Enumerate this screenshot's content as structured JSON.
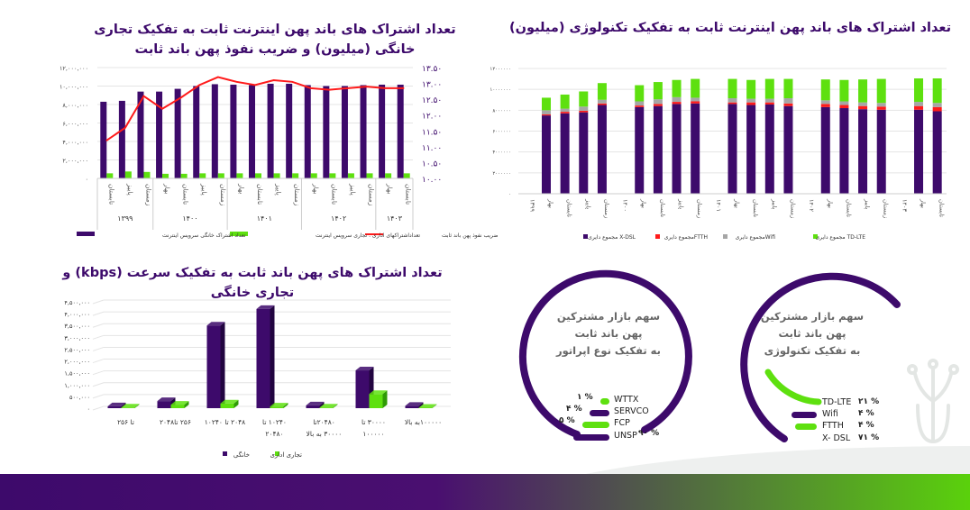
{
  "charts_text": {
    "c1_title_1": "تعداد اشتراک های باند پهن اینترنت ثابت به تفکیک تجاری",
    "c1_title_2": "خانگی (میلیون) و ضریب نفوذ پهن باند ثابت",
    "c2_title": "تعداد اشتراک های باند پهن اینترنت ثابت به تفکیک تکنولوژی (میلیون)",
    "c3_title": "تعداد اشتراک های پهن باند ثابت به تفکیک سرعت (kbps) و تجاری خانگی"
  },
  "colors": {
    "purple": "#3d0a6b",
    "green": "#5ee00f",
    "red": "#ff1a1a",
    "gray": "#a6a6a6"
  },
  "chart_data": [
    {
      "type": "bar+line",
      "title": "تعداد اشتراک های باند پهن اینترنت ثابت به تفکیک تجاری خانگی (میلیون) و ضریب نفوذ پهن باند ثابت",
      "categories": [
        "تابستان",
        "پاییز",
        "زمستان",
        "بهار",
        "تابستان",
        "پاییز",
        "زمستان",
        "بهار",
        "تابستان",
        "پاییز",
        "زمستان",
        "بهار",
        "تابستان",
        "پاییز",
        "زمستان",
        "بهار",
        "تابستان"
      ],
      "groups": [
        {
          "label": "۱۳۹۹",
          "count": 3
        },
        {
          "label": "۱۴۰۰",
          "count": 4
        },
        {
          "label": "۱۴۰۱",
          "count": 4
        },
        {
          "label": "۱۴۰۲",
          "count": 4
        },
        {
          "label": "۱۴۰۳",
          "count": 2
        }
      ],
      "ylim": [
        0,
        12000000
      ],
      "y2lim": [
        10,
        13.5
      ],
      "yticks": [
        "۰",
        "۲,۰۰۰,۰۰۰",
        "۴,۰۰۰,۰۰۰",
        "۶,۰۰۰,۰۰۰",
        "۸,۰۰۰,۰۰۰",
        "۱۰,۰۰۰,۰۰۰",
        "۱۲,۰۰۰,۰۰۰"
      ],
      "y2ticks": [
        "۱۰.۰۰",
        "۱۰.۵۰",
        "۱۱.۰۰",
        "۱۱.۵۰",
        "۱۲.۰۰",
        "۱۲.۵۰",
        "۱۳.۰۰",
        "۱۳.۵۰"
      ],
      "series": [
        {
          "name": "تعداد اشتراک خانگی سرویس اینترنت",
          "type": "bar",
          "color": "#3d0a6b",
          "values": [
            8300000,
            8400000,
            9400000,
            9400000,
            9700000,
            10000000,
            10200000,
            10150000,
            10100000,
            10250000,
            10250000,
            10100000,
            10000000,
            10000000,
            10100000,
            10150000,
            10150000
          ]
        },
        {
          "name": "تعداداشتراکهای اداری . تجاری سرویس اینترنت",
          "type": "bar",
          "color": "#5ee00f",
          "values": [
            550000,
            750000,
            700000,
            500000,
            500000,
            550000,
            550000,
            550000,
            550000,
            550000,
            550000,
            550000,
            550000,
            550000,
            550000,
            550000,
            550000
          ]
        },
        {
          "name": "ضریب نفوذ پهن باند ثابت",
          "type": "line",
          "axis": "right",
          "color": "#ff1a1a",
          "values": [
            11.2,
            11.6,
            12.6,
            12.2,
            12.55,
            12.95,
            13.2,
            13.05,
            12.95,
            13.1,
            13.05,
            12.85,
            12.8,
            12.85,
            12.9,
            12.85,
            12.85
          ]
        }
      ],
      "legend": "bottom",
      "grid": true
    },
    {
      "type": "stacked-bar",
      "title": "تعداد اشتراک های باند پهن اینترنت ثابت به تفکیک تکنولوژی (میلیون)",
      "categories": [
        "۱۳۹۹",
        "بهار",
        "تابستان",
        "پاییز",
        "زمستان",
        "۱۴۰۰",
        "بهار",
        "تابستان",
        "پاییز",
        "زمستان",
        "۱۴۰۱",
        "بهار",
        "تابستان",
        "پاییز",
        "زمستان",
        "۱۴۰۲",
        "بهار",
        "تابستان",
        "پاییز",
        "زمستان",
        "۱۴۰۳",
        "بهار",
        "تابستان"
      ],
      "ylim": [
        0,
        12000000
      ],
      "yticks": [
        "۰",
        "۲۰۰۰۰۰۰",
        "۴۰۰۰۰۰۰",
        "۶۰۰۰۰۰۰",
        "۸۰۰۰۰۰۰",
        "۱۰۰۰۰۰۰۰",
        "۱۲۰۰۰۰۰۰"
      ],
      "series": [
        {
          "name": "مجموع دایری X-DSL",
          "color": "#3d0a6b",
          "values": [
            null,
            7500000,
            7700000,
            7800000,
            8500000,
            null,
            8300000,
            8400000,
            8600000,
            8650000,
            null,
            8600000,
            8500000,
            8550000,
            8400000,
            null,
            8300000,
            8200000,
            8100000,
            8050000,
            null,
            8050000,
            7900000
          ]
        },
        {
          "name": "مجموع دایریFTTH",
          "color": "#ff1a1a",
          "values": [
            null,
            100000,
            150000,
            150000,
            150000,
            null,
            150000,
            200000,
            200000,
            200000,
            null,
            150000,
            250000,
            200000,
            250000,
            null,
            300000,
            300000,
            300000,
            300000,
            null,
            350000,
            400000
          ]
        },
        {
          "name": "مجموع دایریWifi",
          "color": "#a6a6a6",
          "values": [
            null,
            400000,
            300000,
            400000,
            350000,
            null,
            400000,
            450000,
            450000,
            350000,
            null,
            400000,
            350000,
            350000,
            500000,
            null,
            350000,
            350000,
            350000,
            350000,
            null,
            400000,
            400000
          ]
        },
        {
          "name": "مجموع دایری TD-LTE",
          "color": "#5ee00f",
          "values": [
            null,
            1200000,
            1350000,
            1450000,
            1600000,
            null,
            1550000,
            1650000,
            1650000,
            1800000,
            null,
            1850000,
            1800000,
            1900000,
            1850000,
            null,
            2000000,
            2050000,
            2200000,
            2300000,
            null,
            2250000,
            2350000
          ]
        }
      ],
      "legend": "bottom",
      "grid": true
    },
    {
      "type": "bar-3d",
      "title": "تعداد اشتراک های پهن باند ثابت به تفکیک سرعت (kbps) و تجاری خانگی",
      "categories": [
        [
          "تا ۲۵۶",
          ""
        ],
        [
          "۲۵۶ تا۲۰۴۸",
          ""
        ],
        [
          "۲۰۴۸ تا ۱۰۲۴۰",
          ""
        ],
        [
          "۱۰۲۴۰ تا",
          "۲۰۴۸۰"
        ],
        [
          "۲۰۴۸۰تا",
          "۳۰۰۰۰ به بالا"
        ],
        [
          "۳۰۰۰۰ تا",
          "۱۰۰۰۰۰"
        ],
        [
          "۱۰۰۰۰۰به بالا",
          ""
        ]
      ],
      "ylim": [
        0,
        4500000
      ],
      "yticks": [
        "۰",
        "۵۰۰,۰۰۰",
        "۱,۰۰۰,۰۰۰",
        "۱,۵۰۰,۰۰۰",
        "۲,۰۰۰,۰۰۰",
        "۲,۵۰۰,۰۰۰",
        "۳,۰۰۰,۰۰۰",
        "۳,۵۰۰,۰۰۰",
        "۴,۰۰۰,۰۰۰",
        "۴,۵۰۰,۰۰۰"
      ],
      "series": [
        {
          "name": "خانگی",
          "color": "#3d0a6b",
          "values": [
            80000,
            300000,
            3500000,
            4200000,
            120000,
            1600000,
            100000
          ]
        },
        {
          "name": "تجاری اداری",
          "color": "#5ee00f",
          "values": [
            30000,
            150000,
            200000,
            70000,
            30000,
            600000,
            20000
          ]
        }
      ],
      "legend": "bottom",
      "grid": true
    },
    {
      "type": "pie",
      "title": "سهم بازار مشترکین پهن باند ثابت به تفکیک نوع اپراتور",
      "title_lines": [
        "سهم بازار مشترکین",
        "پهن باند ثابت",
        "به تفکیک نوع اپراتور"
      ],
      "slices": [
        {
          "label": "WTTX",
          "pct": "۱ %",
          "value": 1,
          "color": "#5ee00f"
        },
        {
          "label": "SERVCO",
          "pct": "۴ %",
          "value": 4,
          "color": "#3d0a6b"
        },
        {
          "label": "FCP",
          "pct": "۵ %",
          "value": 5,
          "color": "#5ee00f"
        },
        {
          "label": "UNSP",
          "pct": "۹۰ %",
          "value": 90,
          "color": "#3d0a6b"
        }
      ]
    },
    {
      "type": "pie",
      "title": "سهم بازار مشترکین پهن باند ثابت به تفکیک تکنولوژی",
      "title_lines": [
        "سهم بازار مشترکین",
        "پهن باند ثابت",
        "به تفکیک تکنولوژی"
      ],
      "slices": [
        {
          "label": "TD-LTE",
          "pct": "۲۱ %",
          "value": 21,
          "color": "#5ee00f"
        },
        {
          "label": "Wifi",
          "pct": "۴ %",
          "value": 4,
          "color": "#3d0a6b"
        },
        {
          "label": "FTTH",
          "pct": "۴ %",
          "value": 4,
          "color": "#5ee00f"
        },
        {
          "label": "X- DSL",
          "pct": "۷۱ %",
          "value": 71,
          "color": "#3d0a6b"
        }
      ]
    }
  ]
}
